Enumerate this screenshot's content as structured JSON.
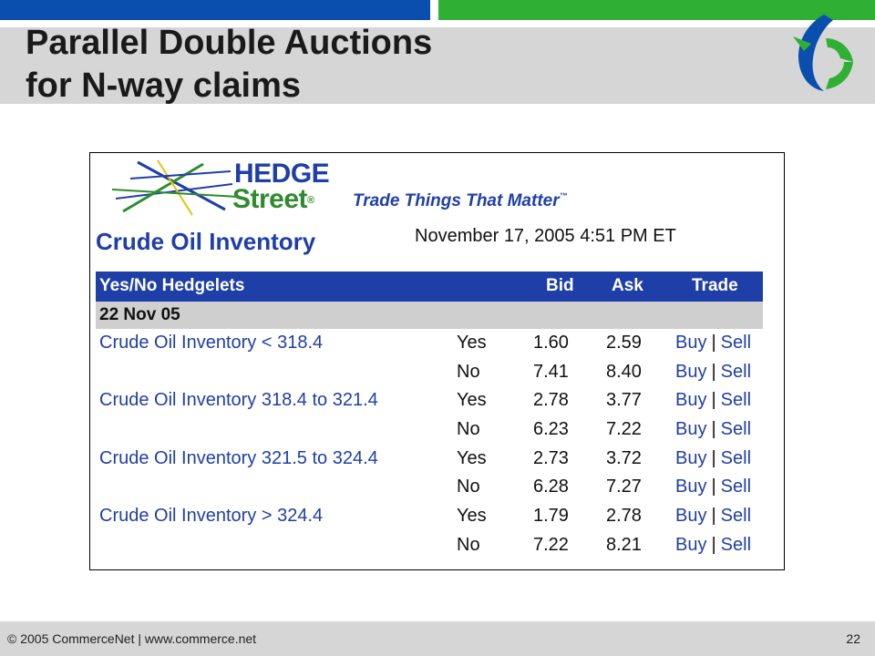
{
  "slide": {
    "title_line1": "Parallel Double Auctions",
    "title_line2": "for N-way claims",
    "footer": "© 2005 CommerceNet | www.commerce.net",
    "page_number": "22",
    "colors": {
      "top_bar_blue": "#0b4fae",
      "top_bar_green": "#2fb034",
      "band_gray": "#d6d6d6"
    },
    "logo_icon": "commercenet-logo-icon"
  },
  "hedgestreet": {
    "brand_line1": "HEDGE",
    "brand_line2": "Street",
    "registered_mark": "®",
    "tagline": "Trade Things That Matter",
    "trademark": "™",
    "market_title": "Crude Oil Inventory",
    "timestamp": "November 17, 2005 4:51 PM ET",
    "colors": {
      "brand_blue": "#1f3fa8",
      "brand_green": "#2e8b2e",
      "date_row_gray": "#cfcfcf"
    },
    "table": {
      "headers": {
        "name": "Yes/No Hedgelets",
        "bid": "Bid",
        "ask": "Ask",
        "trade": "Trade"
      },
      "date_label": "22 Nov 05",
      "buy_label": "Buy",
      "sell_label": "Sell",
      "separator": "|",
      "rows": [
        {
          "name": "Crude Oil Inventory < 318.4",
          "side": "Yes",
          "bid": "1.60",
          "ask": "2.59"
        },
        {
          "name": "",
          "side": "No",
          "bid": "7.41",
          "ask": "8.40"
        },
        {
          "name": "Crude Oil Inventory 318.4 to 321.4",
          "side": "Yes",
          "bid": "2.78",
          "ask": "3.77"
        },
        {
          "name": "",
          "side": "No",
          "bid": "6.23",
          "ask": "7.22"
        },
        {
          "name": "Crude Oil Inventory 321.5 to 324.4",
          "side": "Yes",
          "bid": "2.73",
          "ask": "3.72"
        },
        {
          "name": "",
          "side": "No",
          "bid": "6.28",
          "ask": "7.27"
        },
        {
          "name": "Crude Oil Inventory > 324.4",
          "side": "Yes",
          "bid": "1.79",
          "ask": "2.78"
        },
        {
          "name": "",
          "side": "No",
          "bid": "7.22",
          "ask": "8.21"
        }
      ]
    }
  }
}
